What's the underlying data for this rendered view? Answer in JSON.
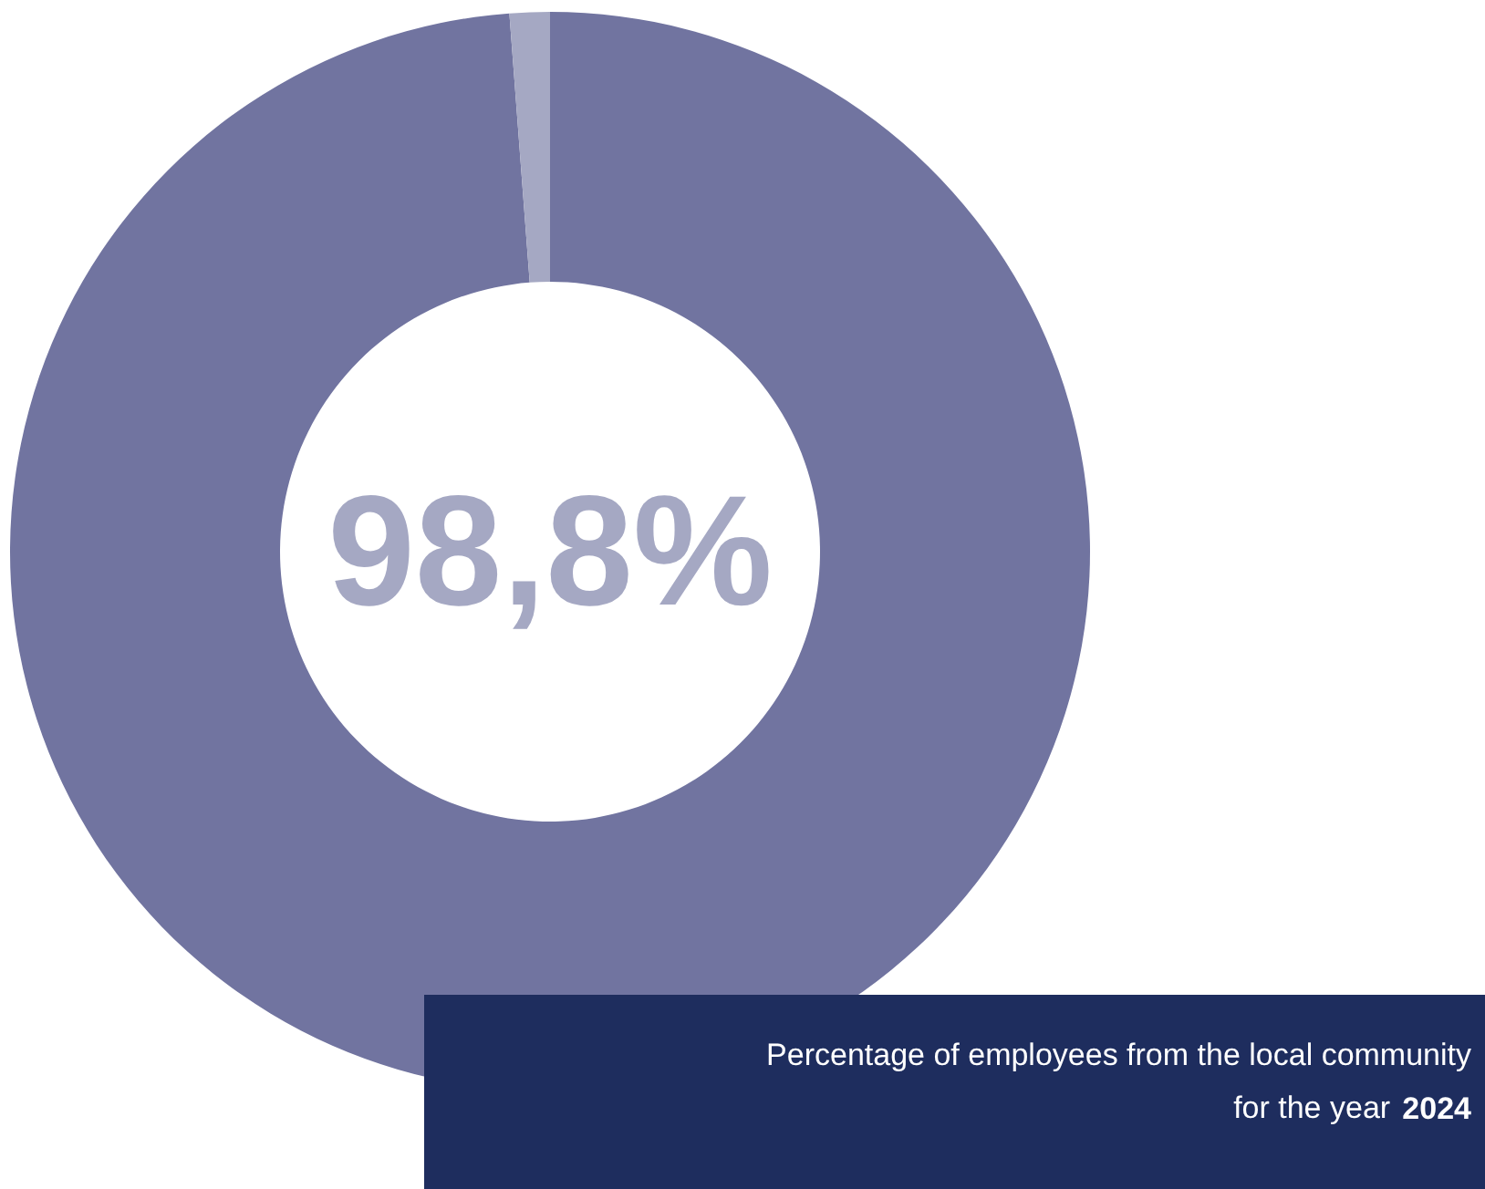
{
  "chart_data": {
    "type": "donut",
    "title": "Percentage of employees from the local community for the year 2024",
    "categories": [
      null,
      null
    ],
    "values": [
      98.8,
      1.2
    ],
    "colors": [
      "#7174a0",
      "#a5a8c3"
    ],
    "value_labels": [
      "98,8%",
      null
    ]
  }
}
